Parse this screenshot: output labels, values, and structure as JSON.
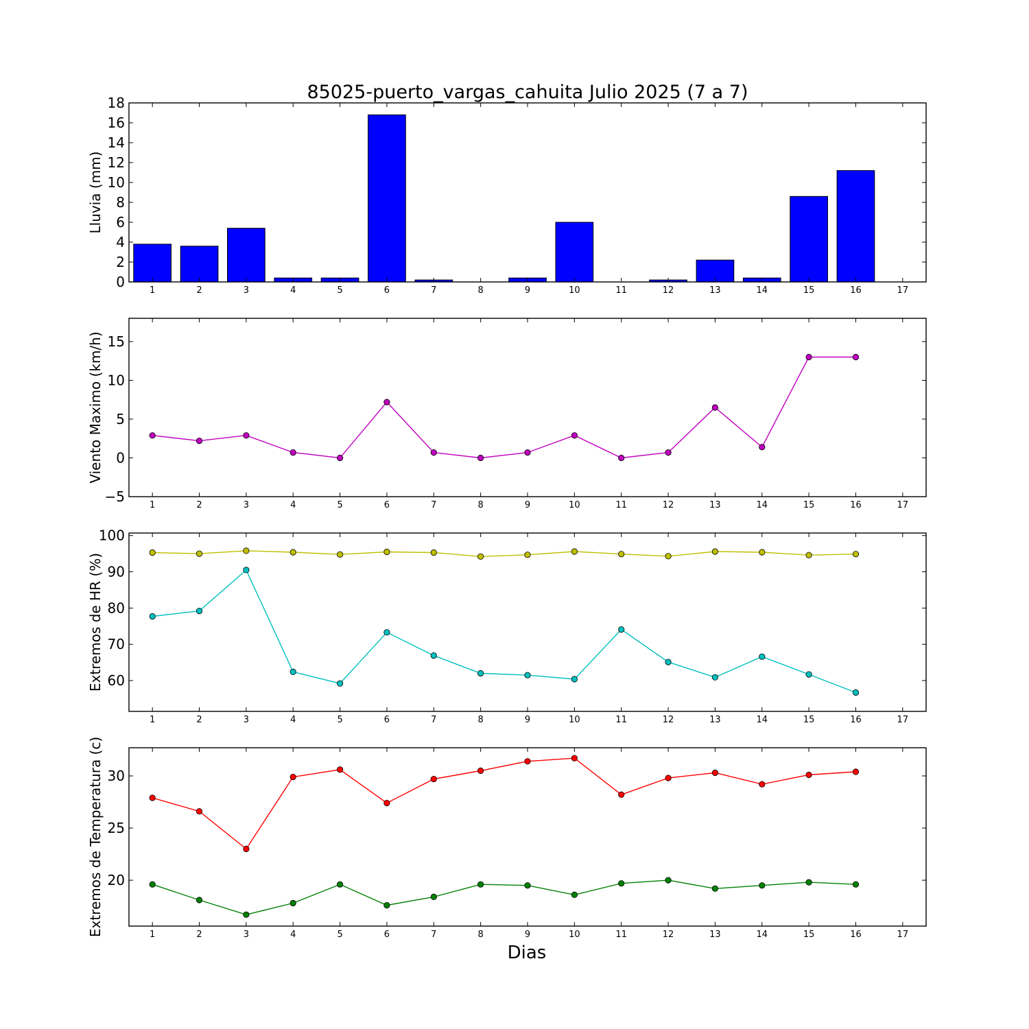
{
  "chart_data": {
    "title": "85025-puerto_vargas_cahuita Julio 2025  (7 a 7)",
    "xlabel": "Dias",
    "xlim": [
      0.5,
      17.5
    ],
    "xticks": [
      1,
      2,
      3,
      4,
      5,
      6,
      7,
      8,
      9,
      10,
      11,
      12,
      13,
      14,
      15,
      16,
      17
    ],
    "panels": [
      {
        "type": "bar",
        "ylabel": "Lluvia (mm)",
        "ylim": [
          0,
          18
        ],
        "yticks": [
          0,
          2,
          4,
          6,
          8,
          10,
          12,
          14,
          16,
          18
        ],
        "series": [
          {
            "color": "#0000ff",
            "x": [
              1,
              2,
              3,
              4,
              5,
              6,
              7,
              8,
              9,
              10,
              11,
              12,
              13,
              14,
              15,
              16
            ],
            "values": [
              3.8,
              3.6,
              5.4,
              0.4,
              0.4,
              16.8,
              0.2,
              0,
              0.4,
              6.0,
              0,
              0.2,
              2.2,
              0.4,
              8.6,
              11.2
            ]
          }
        ]
      },
      {
        "type": "line",
        "ylabel": "Viento Maximo (km/h)",
        "ylim": [
          -5,
          18
        ],
        "yticks": [
          -5,
          0,
          5,
          10,
          15
        ],
        "ytick_labels": [
          "−5",
          "0",
          "5",
          "10",
          "15"
        ],
        "series": [
          {
            "color": "#bf00bf",
            "x": [
              1,
              2,
              3,
              4,
              5,
              6,
              7,
              8,
              9,
              10,
              11,
              12,
              13,
              14,
              15,
              16
            ],
            "values": [
              2.9,
              2.2,
              2.9,
              0.7,
              0.0,
              7.2,
              0.7,
              0.0,
              0.7,
              2.9,
              0.0,
              0.7,
              6.5,
              1.4,
              13.0,
              13.0
            ]
          }
        ]
      },
      {
        "type": "line",
        "ylabel": "Extremos de HR (%)",
        "ylim": [
          51.5,
          100.7
        ],
        "yticks": [
          60,
          70,
          80,
          90,
          100
        ],
        "series": [
          {
            "color": "#bfbf00",
            "x": [
              1,
              2,
              3,
              4,
              5,
              6,
              7,
              8,
              9,
              10,
              11,
              12,
              13,
              14,
              15,
              16
            ],
            "values": [
              95.3,
              95.0,
              95.8,
              95.4,
              94.8,
              95.5,
              95.3,
              94.2,
              94.7,
              95.6,
              94.9,
              94.3,
              95.6,
              95.4,
              94.6,
              94.9
            ]
          },
          {
            "color": "#00bfbf",
            "x": [
              1,
              2,
              3,
              4,
              5,
              6,
              7,
              8,
              9,
              10,
              11,
              12,
              13,
              14,
              15,
              16
            ],
            "values": [
              77.7,
              79.2,
              90.5,
              62.4,
              59.2,
              73.3,
              66.9,
              62.0,
              61.5,
              60.4,
              74.1,
              65.1,
              60.9,
              66.6,
              61.7,
              56.7
            ]
          }
        ]
      },
      {
        "type": "line",
        "ylabel": "Extremos de Temperatura (c)",
        "ylim": [
          15.6,
          32.7
        ],
        "yticks": [
          20,
          25,
          30
        ],
        "series": [
          {
            "color": "#ff0000",
            "x": [
              1,
              2,
              3,
              4,
              5,
              6,
              7,
              8,
              9,
              10,
              11,
              12,
              13,
              14,
              15,
              16
            ],
            "values": [
              27.9,
              26.6,
              23.0,
              29.9,
              30.6,
              27.4,
              29.7,
              30.5,
              31.4,
              31.7,
              28.2,
              29.8,
              30.3,
              29.2,
              30.1,
              30.4
            ]
          },
          {
            "color": "#008000",
            "x": [
              1,
              2,
              3,
              4,
              5,
              6,
              7,
              8,
              9,
              10,
              11,
              12,
              13,
              14,
              15,
              16
            ],
            "values": [
              19.6,
              18.1,
              16.7,
              17.8,
              19.6,
              17.6,
              18.4,
              19.6,
              19.5,
              18.6,
              19.7,
              20.0,
              19.2,
              19.5,
              19.8,
              19.6
            ]
          }
        ]
      }
    ]
  }
}
